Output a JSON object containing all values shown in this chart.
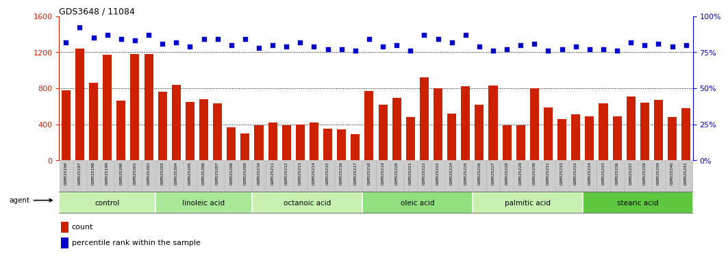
{
  "title": "GDS3648 / 11084",
  "samples": [
    "GSM525196",
    "GSM525197",
    "GSM525198",
    "GSM525199",
    "GSM525200",
    "GSM525201",
    "GSM525202",
    "GSM525203",
    "GSM525204",
    "GSM525205",
    "GSM525206",
    "GSM525207",
    "GSM525208",
    "GSM525209",
    "GSM525210",
    "GSM525211",
    "GSM525212",
    "GSM525213",
    "GSM525214",
    "GSM525215",
    "GSM525216",
    "GSM525217",
    "GSM525218",
    "GSM525219",
    "GSM525220",
    "GSM525221",
    "GSM525222",
    "GSM525223",
    "GSM525224",
    "GSM525225",
    "GSM525226",
    "GSM525227",
    "GSM525228",
    "GSM525229",
    "GSM525230",
    "GSM525231",
    "GSM525232",
    "GSM525233",
    "GSM525234",
    "GSM525235",
    "GSM525236",
    "GSM525237",
    "GSM525238",
    "GSM525239",
    "GSM525240",
    "GSM525241"
  ],
  "counts": [
    780,
    1240,
    860,
    1170,
    660,
    1180,
    1180,
    760,
    840,
    650,
    680,
    630,
    370,
    300,
    390,
    420,
    390,
    400,
    420,
    350,
    340,
    290,
    770,
    620,
    690,
    480,
    920,
    800,
    520,
    820,
    620,
    830,
    390,
    390,
    800,
    590,
    460,
    510,
    490,
    630,
    490,
    710,
    640,
    670,
    480,
    580
  ],
  "percentile_ranks": [
    82,
    92,
    85,
    87,
    84,
    83,
    87,
    81,
    82,
    79,
    84,
    84,
    80,
    84,
    78,
    80,
    79,
    82,
    79,
    77,
    77,
    76,
    84,
    79,
    80,
    76,
    87,
    84,
    82,
    87,
    79,
    76,
    77,
    80,
    81,
    76,
    77,
    79,
    77,
    77,
    76,
    82,
    80,
    81,
    79,
    80
  ],
  "groups": [
    {
      "label": "control",
      "start": 0,
      "end": 7
    },
    {
      "label": "linoleic acid",
      "start": 7,
      "end": 14
    },
    {
      "label": "octanoic acid",
      "start": 14,
      "end": 22
    },
    {
      "label": "oleic acid",
      "start": 22,
      "end": 30
    },
    {
      "label": "palmitic acid",
      "start": 30,
      "end": 38
    },
    {
      "label": "stearic acid",
      "start": 38,
      "end": 46
    }
  ],
  "group_colors": [
    "#c8f0b0",
    "#a8e898",
    "#c8f0b0",
    "#90e080",
    "#c8f0b0",
    "#60c840"
  ],
  "bar_color": "#cc2200",
  "dot_color": "#0000cc",
  "ylim_left": [
    0,
    1600
  ],
  "ylim_right": [
    0,
    100
  ],
  "yticks_left": [
    0,
    400,
    800,
    1200,
    1600
  ],
  "yticks_right": [
    0,
    25,
    50,
    75,
    100
  ],
  "grid_vals": [
    400,
    800,
    1200
  ],
  "title_fontsize": 9,
  "tick_label_color_left": "#cc2200",
  "tick_label_color_right": "#0000cc",
  "legend_bar_color": "#cc2200",
  "legend_dot_color": "#0000cc",
  "xlabel_bg_color": "#cccccc",
  "xlabel_border_color": "#aaaaaa"
}
